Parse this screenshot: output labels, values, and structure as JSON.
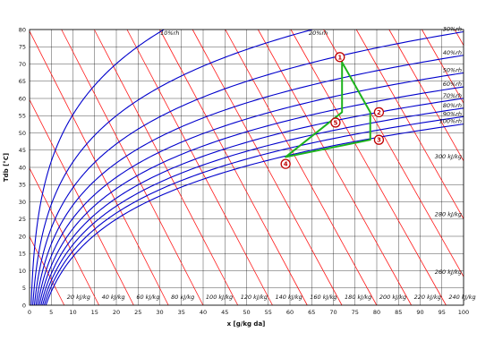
{
  "chart_data": {
    "type": "line",
    "title": "",
    "xlabel": "x [g/kg da]",
    "ylabel": "Tdb [°C]",
    "xlim": [
      0,
      100
    ],
    "ylim": [
      0,
      80
    ],
    "x_ticks": [
      "0",
      "5",
      "10",
      "15",
      "20",
      "25",
      "30",
      "35",
      "40",
      "45",
      "50",
      "55",
      "60",
      "65",
      "70",
      "75",
      "80",
      "85",
      "90",
      "95",
      "100"
    ],
    "y_ticks": [
      "0",
      "5",
      "10",
      "15",
      "20",
      "25",
      "30",
      "35",
      "40",
      "45",
      "50",
      "55",
      "60",
      "65",
      "70",
      "75",
      "80"
    ],
    "grid": true,
    "relative_humidity_curves": [
      {
        "label": "10%rh",
        "rh": 0.1
      },
      {
        "label": "20%rh",
        "rh": 0.2
      },
      {
        "label": "30%rh",
        "rh": 0.3
      },
      {
        "label": "40%rh",
        "rh": 0.4
      },
      {
        "label": "50%rh",
        "rh": 0.5
      },
      {
        "label": "60%rh",
        "rh": 0.6
      },
      {
        "label": "70%rh",
        "rh": 0.7
      },
      {
        "label": "80%rh",
        "rh": 0.8
      },
      {
        "label": "90%rh",
        "rh": 0.9
      },
      {
        "label": "100%rh",
        "rh": 1.0
      }
    ],
    "enthalpy_lines": [
      {
        "h": 20,
        "label": "20 kJ/kg"
      },
      {
        "h": 40,
        "label": "40 kJ/kg"
      },
      {
        "h": 60,
        "label": "60 kJ/kg"
      },
      {
        "h": 80,
        "label": "80 kJ/kg"
      },
      {
        "h": 100,
        "label": "100 kJ/kg"
      },
      {
        "h": 120,
        "label": "120 kJ/kg"
      },
      {
        "h": 140,
        "label": "140 kJ/kg"
      },
      {
        "h": 160,
        "label": "160 kJ/kg"
      },
      {
        "h": 180,
        "label": "180 kJ/kg"
      },
      {
        "h": 200,
        "label": "200 kJ/kg"
      },
      {
        "h": 220,
        "label": "220 kJ/kg"
      },
      {
        "h": 240,
        "label": "240 kJ/kg"
      },
      {
        "h": 260,
        "label": "260 kJ/kg"
      },
      {
        "h": 280,
        "label": "280 kJ/kg"
      },
      {
        "h": 300,
        "label": "300 kJ/kg"
      },
      {
        "h": 320,
        "label": ""
      },
      {
        "h": 340,
        "label": ""
      },
      {
        "h": 360,
        "label": ""
      },
      {
        "h": 380,
        "label": ""
      },
      {
        "h": 400,
        "label": ""
      },
      {
        "h": 420,
        "label": ""
      },
      {
        "h": 440,
        "label": ""
      },
      {
        "h": 460,
        "label": ""
      }
    ],
    "process_points": [
      {
        "label": "1",
        "x": 71.5,
        "y": 72
      },
      {
        "label": "2",
        "x": 80.5,
        "y": 56
      },
      {
        "label": "3",
        "x": 80.5,
        "y": 48
      },
      {
        "label": "4",
        "x": 59,
        "y": 41
      },
      {
        "label": "5",
        "x": 70.5,
        "y": 53
      }
    ],
    "process_path": [
      [
        71.5,
        72
      ],
      [
        72,
        70.5
      ],
      [
        78.5,
        56
      ],
      [
        78.5,
        48
      ],
      [
        59,
        43
      ],
      [
        72,
        56
      ],
      [
        72,
        70.5
      ]
    ],
    "colors": {
      "rh_curve": "#0000cc",
      "enthalpy_line": "#ff1a1a",
      "process_line": "#1db31d",
      "point": "#c00000",
      "grid": "#000000"
    }
  }
}
